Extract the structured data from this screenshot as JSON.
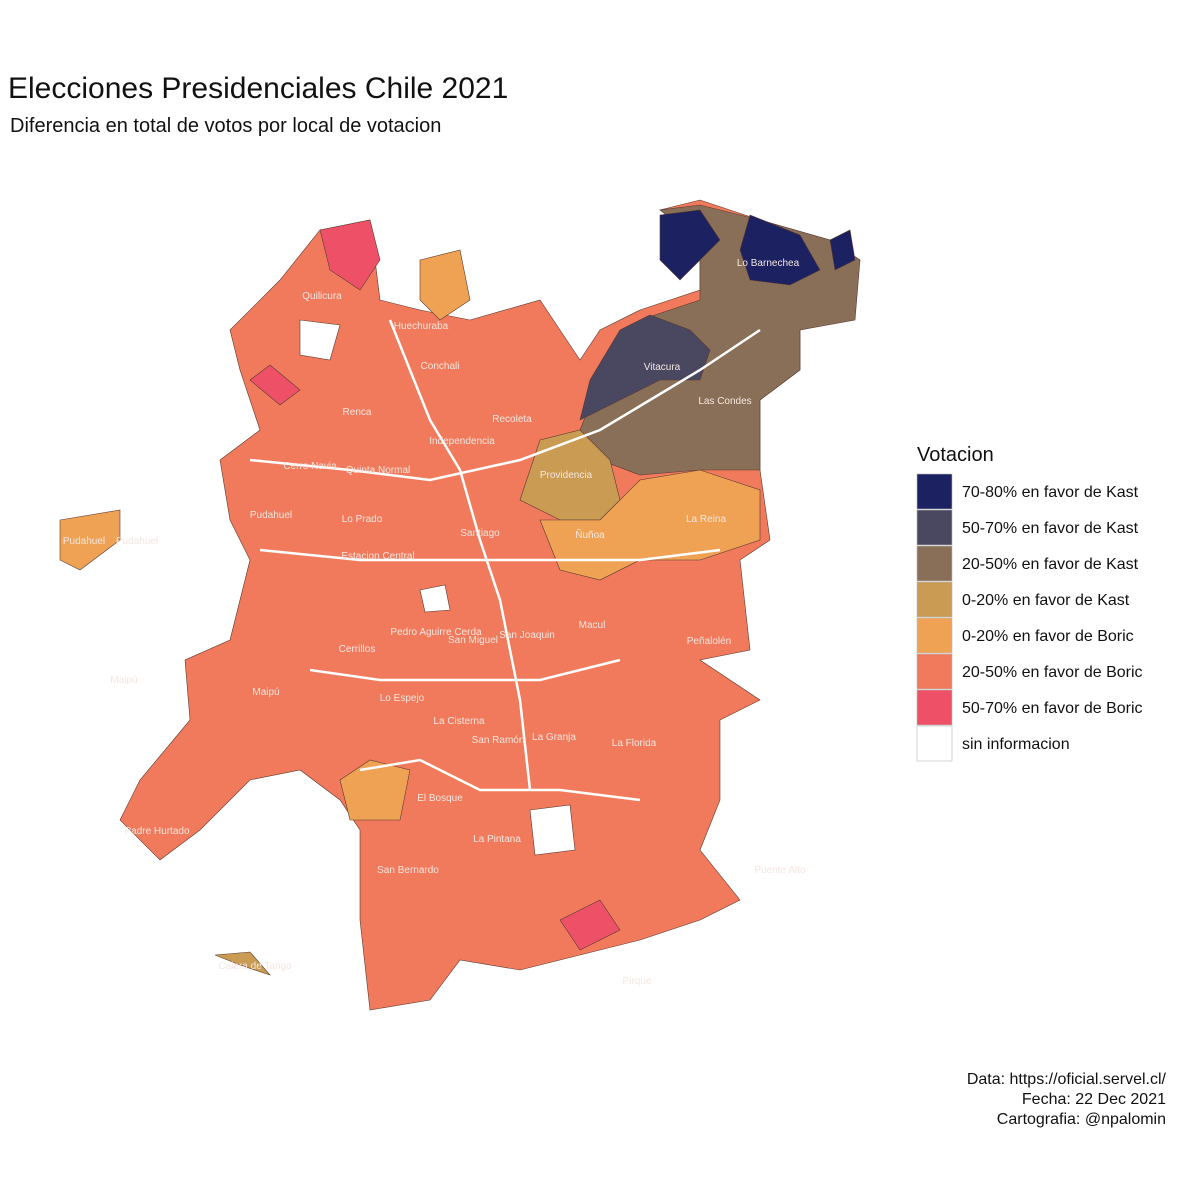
{
  "title": "Elecciones Presidenciales Chile 2021",
  "subtitle": "Diferencia en total de votos por local de votacion",
  "legend": {
    "title": "Votacion",
    "items": [
      {
        "label": "70-80% en favor de Kast",
        "color": "#1b2161"
      },
      {
        "label": "50-70% en favor de Kast",
        "color": "#4a4761"
      },
      {
        "label": "20-50% en favor de Kast",
        "color": "#8a6f58"
      },
      {
        "label": "0-20% en favor de Kast",
        "color": "#c99b53"
      },
      {
        "label": "0-20% en favor de Boric",
        "color": "#f0a254"
      },
      {
        "label": "20-50% en favor de Boric",
        "color": "#f07a5b"
      },
      {
        "label": "50-70% en favor de Boric",
        "color": "#ee5068"
      },
      {
        "label": "sin informacion",
        "color": "#ffffff"
      }
    ]
  },
  "labels": [
    "Quilicura",
    "Huechuraba",
    "Conchali",
    "Vitacura",
    "Lo Barnechea",
    "Las Condes",
    "Renca",
    "Recoleta",
    "Independencia",
    "Cerro Navia",
    "Quinta Normal",
    "Providencia",
    "Lo Prado",
    "Pudahuel",
    "Pudahuel",
    "Pudahuel",
    "Santiago",
    "Ñuñoa",
    "La Reina",
    "Estacion Central",
    "Peñalolén",
    "Macul",
    "Pedro Aguirre Cerda",
    "San Joaquin",
    "San Miguel",
    "Cerrillos",
    "Maipú",
    "Maipú",
    "Lo Espejo",
    "La Cisterna",
    "San Ramón",
    "La Granja",
    "La Florida",
    "El Bosque",
    "Padre Hurtado",
    "La Pintana",
    "San Bernardo",
    "Puente Alto",
    "Calera de Tango",
    "Pirque"
  ],
  "caption": [
    "Data: https://oficial.servel.cl/",
    "Fecha: 22 Dec 2021",
    "Cartografia: @npalomin"
  ]
}
